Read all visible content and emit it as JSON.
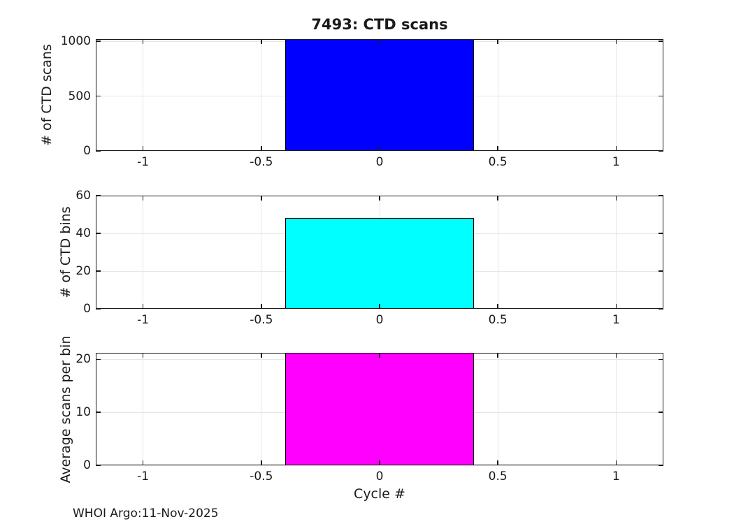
{
  "footer": "WHOI Argo:11-Nov-2025",
  "colors": {
    "axis": "#1a1a1a",
    "grid": "#e6e6e6",
    "background": "#ffffff",
    "bar_blue": "#0000ff",
    "bar_cyan": "#00ffff",
    "bar_magenta": "#ff00ff",
    "bar_edge": "#000000"
  },
  "chart_data": [
    {
      "type": "bar",
      "name": "ctd-scans",
      "title": "7493: CTD scans",
      "ylabel": "# of CTD scans",
      "xlabel": "",
      "x": [
        0
      ],
      "values": [
        1020
      ],
      "bar_width": 0.8,
      "bar_color": "#0000ff",
      "bar_edge_color": "#000000",
      "xlim": [
        -1.2,
        1.2
      ],
      "ylim": [
        0,
        1020
      ],
      "xticks": [
        -1,
        -0.5,
        0,
        0.5,
        1
      ],
      "xtick_labels": [
        "-1",
        "-0.5",
        "0",
        "0.5",
        "1"
      ],
      "yticks": [
        0,
        500,
        1000
      ],
      "ytick_labels": [
        "0",
        "500",
        "1000"
      ],
      "grid": true,
      "legend": null
    },
    {
      "type": "bar",
      "name": "ctd-bins",
      "title": "",
      "ylabel": "# of CTD bins",
      "xlabel": "",
      "x": [
        0
      ],
      "values": [
        48
      ],
      "bar_width": 0.8,
      "bar_color": "#00ffff",
      "bar_edge_color": "#000000",
      "xlim": [
        -1.2,
        1.2
      ],
      "ylim": [
        0,
        60
      ],
      "xticks": [
        -1,
        -0.5,
        0,
        0.5,
        1
      ],
      "xtick_labels": [
        "-1",
        "-0.5",
        "0",
        "0.5",
        "1"
      ],
      "yticks": [
        0,
        20,
        40,
        60
      ],
      "ytick_labels": [
        "0",
        "20",
        "40",
        "60"
      ],
      "grid": true,
      "legend": null
    },
    {
      "type": "bar",
      "name": "avg-scans-per-bin",
      "title": "",
      "ylabel": "Average scans per bin",
      "xlabel": "Cycle #",
      "x": [
        0
      ],
      "values": [
        21.25
      ],
      "bar_width": 0.8,
      "bar_color": "#ff00ff",
      "bar_edge_color": "#000000",
      "xlim": [
        -1.2,
        1.2
      ],
      "ylim": [
        0,
        21.25
      ],
      "xticks": [
        -1,
        -0.5,
        0,
        0.5,
        1
      ],
      "xtick_labels": [
        "-1",
        "-0.5",
        "0",
        "0.5",
        "1"
      ],
      "yticks": [
        0,
        10,
        20
      ],
      "ytick_labels": [
        "0",
        "10",
        "20"
      ],
      "grid": true,
      "legend": null
    }
  ]
}
